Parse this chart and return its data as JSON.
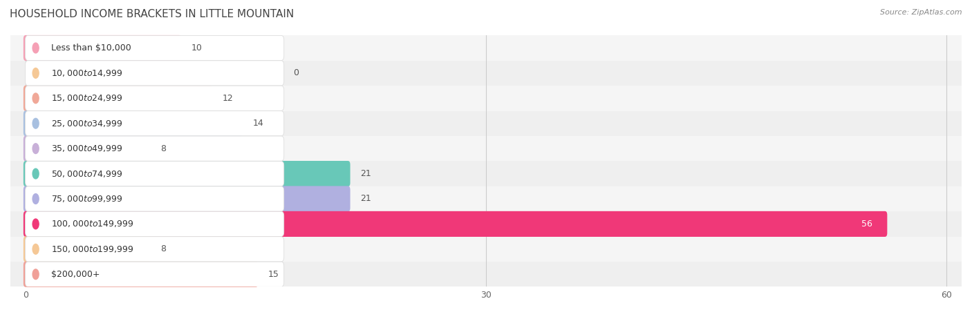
{
  "title": "HOUSEHOLD INCOME BRACKETS IN LITTLE MOUNTAIN",
  "source": "Source: ZipAtlas.com",
  "categories": [
    "Less than $10,000",
    "$10,000 to $14,999",
    "$15,000 to $24,999",
    "$25,000 to $34,999",
    "$35,000 to $49,999",
    "$50,000 to $74,999",
    "$75,000 to $99,999",
    "$100,000 to $149,999",
    "$150,000 to $199,999",
    "$200,000+"
  ],
  "values": [
    10,
    0,
    12,
    14,
    8,
    21,
    21,
    56,
    8,
    15
  ],
  "bar_colors": [
    "#f5a0b5",
    "#f5c896",
    "#f0a898",
    "#a8c0e0",
    "#c8b0d8",
    "#68c8b8",
    "#b0b0e0",
    "#f03878",
    "#f5c896",
    "#f0a098"
  ],
  "row_bg_colors": [
    "#f5f5f5",
    "#efefef"
  ],
  "full_bar_bg": "#e8e8e8",
  "xlim_max": 60,
  "xticks": [
    0,
    30,
    60
  ],
  "title_fontsize": 11,
  "source_fontsize": 8,
  "label_fontsize": 9,
  "value_fontsize": 9,
  "background_color": "#ffffff",
  "grid_color": "#cccccc",
  "value_56_color": "#ffffff"
}
